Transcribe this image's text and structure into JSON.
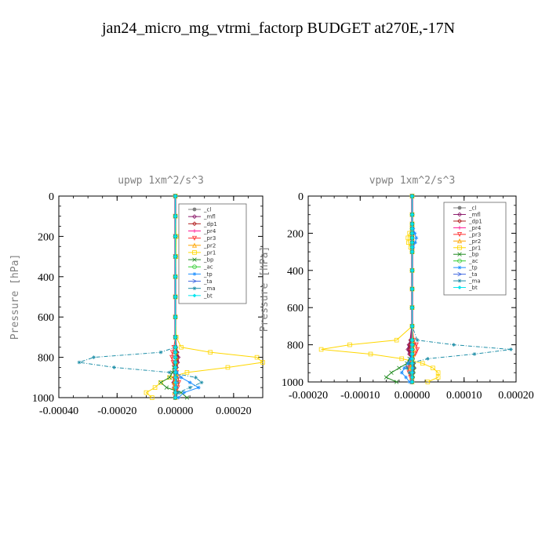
{
  "title": "jan24_micro_mg_vtrmi_factorp  BUDGET at270E,-17N",
  "chart_data": [
    {
      "type": "line",
      "title": "upwp   1xm^2/s^3",
      "ylabel": "Pressure [hPa]",
      "xlim": [
        -0.0004,
        0.0003
      ],
      "ylim": [
        1000,
        0
      ],
      "xticks": [
        -0.0004,
        -0.0002,
        0.0,
        0.0002
      ],
      "xticklabels": [
        "-0.00040",
        "-0.00020",
        "0.00000",
        "0.00020"
      ],
      "yticks": [
        0,
        200,
        400,
        600,
        800,
        1000
      ],
      "yticklabels": [
        "0",
        "200",
        "400",
        "600",
        "800",
        "1000"
      ],
      "legend_position": "upper-right",
      "pressure": [
        0,
        100,
        200,
        300,
        400,
        500,
        600,
        700,
        750,
        775,
        800,
        825,
        850,
        875,
        900,
        925,
        950,
        975,
        1000
      ],
      "series": [
        {
          "name": "_cl",
          "color": "#808080",
          "marker": "circle",
          "values": [
            0,
            0,
            0,
            0,
            0,
            0,
            0,
            0,
            0,
            2e-06,
            3e-06,
            2e-06,
            1e-06,
            0,
            -2e-06,
            -3e-06,
            -2e-06,
            -1e-06,
            0
          ]
        },
        {
          "name": "_mfl",
          "color": "#8b1a6b",
          "marker": "diamond",
          "values": [
            0,
            0,
            0,
            0,
            0,
            0,
            0,
            0,
            2e-06,
            6e-06,
            1e-05,
            8e-06,
            4e-06,
            0,
            -4e-06,
            -6e-06,
            -4e-06,
            -2e-06,
            0
          ]
        },
        {
          "name": "_dp1",
          "color": "#b22222",
          "marker": "diamond",
          "values": [
            0,
            0,
            0,
            0,
            0,
            0,
            0,
            0,
            1e-06,
            3e-06,
            5e-06,
            4e-06,
            2e-06,
            0,
            -2e-06,
            -3e-06,
            -2e-06,
            -1e-06,
            0
          ]
        },
        {
          "name": "_pr4",
          "color": "#ff1493",
          "marker": "plus",
          "values": [
            0,
            0,
            0,
            0,
            0,
            0,
            0,
            0,
            1e-06,
            2e-06,
            4e-06,
            3e-06,
            1e-06,
            0,
            -1e-06,
            -2e-06,
            -2e-06,
            -1e-06,
            0
          ]
        },
        {
          "name": "_pr3",
          "color": "#ff3030",
          "marker": "triangle-down",
          "values": [
            0,
            0,
            0,
            0,
            0,
            0,
            0,
            0,
            -5e-06,
            -1e-05,
            -1.2e-05,
            -8e-06,
            -4e-06,
            4e-06,
            1e-05,
            1.2e-05,
            8e-06,
            4e-06,
            0
          ]
        },
        {
          "name": "_pr2",
          "color": "#ffa500",
          "marker": "triangle",
          "values": [
            0,
            0,
            0,
            0,
            0,
            0,
            0,
            0,
            1e-06,
            3e-06,
            4e-06,
            3e-06,
            2e-06,
            0,
            -2e-06,
            -4e-06,
            -5e-06,
            -3e-06,
            0
          ]
        },
        {
          "name": "_pr1",
          "color": "#ffd700",
          "marker": "square",
          "values": [
            0,
            0,
            3e-06,
            2e-06,
            0,
            0,
            0,
            3e-06,
            2e-05,
            0.00012,
            0.00028,
            0.0003,
            0.00018,
            4e-05,
            -2e-05,
            -5e-05,
            -7e-05,
            -0.0001,
            -8e-05
          ]
        },
        {
          "name": "_bp",
          "color": "#228b22",
          "marker": "x",
          "values": [
            0,
            0,
            0,
            0,
            0,
            0,
            0,
            0,
            0,
            0,
            0,
            0,
            -5e-06,
            -1e-05,
            -2e-05,
            -5e-05,
            -3e-05,
            2e-05,
            4e-05
          ]
        },
        {
          "name": "_ac",
          "color": "#32cd32",
          "marker": "circle-open",
          "values": [
            0,
            0,
            0,
            0,
            0,
            0,
            0,
            0,
            0,
            0,
            0,
            0,
            0,
            2e-06,
            3e-06,
            4e-06,
            2e-06,
            1e-06,
            0
          ]
        },
        {
          "name": "_tp",
          "color": "#1e90ff",
          "marker": "asterisk",
          "values": [
            0,
            0,
            0,
            0,
            0,
            0,
            0,
            0,
            0,
            0,
            0,
            0,
            0,
            5e-06,
            2e-05,
            5e-05,
            8e-05,
            3e-05,
            1e-05
          ]
        },
        {
          "name": "_ta",
          "color": "#4169e1",
          "marker": "arrow",
          "values": [
            0,
            0,
            0,
            0,
            0,
            0,
            0,
            0,
            0,
            0,
            0,
            0,
            0,
            0,
            2e-06,
            4e-06,
            3e-06,
            1e-06,
            0
          ]
        },
        {
          "name": "_ma",
          "color": "#1f8fa8",
          "marker": "star",
          "values": [
            0,
            0,
            0,
            0,
            0,
            0,
            0,
            0,
            0,
            -5e-05,
            -0.00028,
            -0.00033,
            -0.00021,
            -2e-05,
            7e-05,
            9e-05,
            5e-05,
            1e-05,
            0
          ]
        },
        {
          "name": "_bt",
          "color": "#00e5ee",
          "marker": "diamond-filled",
          "values": [
            0,
            0,
            0,
            0,
            0,
            0,
            0,
            0,
            0,
            0,
            0,
            0,
            0,
            0,
            0,
            0,
            0,
            0,
            0
          ]
        }
      ]
    },
    {
      "type": "line",
      "title": "vpwp   1xm^2/s^3",
      "ylabel": "Pressure [hPa]",
      "xlim": [
        -0.0002,
        0.0002
      ],
      "ylim": [
        1000,
        0
      ],
      "xticks": [
        -0.0002,
        -0.0001,
        0.0,
        0.0001,
        0.0002
      ],
      "xticklabels": [
        "-0.00020",
        "-0.00010",
        "0.00000",
        "0.00010",
        "0.00020"
      ],
      "yticks": [
        0,
        200,
        400,
        600,
        800,
        1000
      ],
      "yticklabels": [
        "0",
        "200",
        "400",
        "600",
        "800",
        "1000"
      ],
      "legend_position": "upper-right",
      "pressure": [
        0,
        100,
        150,
        175,
        200,
        225,
        250,
        275,
        300,
        400,
        500,
        600,
        700,
        775,
        800,
        825,
        850,
        875,
        900,
        925,
        950,
        975,
        1000
      ],
      "series": [
        {
          "name": "_cl",
          "color": "#808080",
          "marker": "circle",
          "values": [
            0,
            0,
            0,
            0,
            0,
            0,
            0,
            0,
            0,
            0,
            0,
            0,
            0,
            1e-06,
            2e-06,
            1e-06,
            0,
            -1e-06,
            -2e-06,
            -1e-06,
            0,
            0,
            0
          ]
        },
        {
          "name": "_mfl",
          "color": "#8b1a6b",
          "marker": "diamond",
          "values": [
            0,
            0,
            0,
            0,
            0,
            0,
            0,
            0,
            0,
            0,
            0,
            0,
            0,
            -3e-06,
            -6e-06,
            -8e-06,
            -5e-06,
            0,
            3e-06,
            4e-06,
            2e-06,
            1e-06,
            0
          ]
        },
        {
          "name": "_dp1",
          "color": "#b22222",
          "marker": "diamond",
          "values": [
            0,
            0,
            0,
            0,
            0,
            0,
            0,
            0,
            0,
            0,
            0,
            0,
            0,
            -2e-06,
            -4e-06,
            -5e-06,
            -3e-06,
            0,
            2e-06,
            3e-06,
            2e-06,
            1e-06,
            0
          ]
        },
        {
          "name": "_pr4",
          "color": "#ff1493",
          "marker": "plus",
          "values": [
            0,
            0,
            0,
            0,
            0,
            0,
            0,
            0,
            0,
            0,
            0,
            0,
            0,
            -1e-06,
            -2e-06,
            -3e-06,
            -2e-06,
            0,
            1e-06,
            2e-06,
            1e-06,
            0,
            0
          ]
        },
        {
          "name": "_pr3",
          "color": "#ff3030",
          "marker": "triangle-down",
          "values": [
            0,
            0,
            0,
            0,
            0,
            0,
            0,
            0,
            0,
            0,
            0,
            0,
            0,
            3e-06,
            8e-06,
            1e-05,
            6e-06,
            0,
            -5e-06,
            -8e-06,
            -6e-06,
            -3e-06,
            0
          ]
        },
        {
          "name": "_pr2",
          "color": "#ffa500",
          "marker": "triangle",
          "values": [
            0,
            0,
            0,
            0,
            0,
            0,
            0,
            0,
            0,
            0,
            0,
            0,
            0,
            1e-06,
            2e-06,
            3e-06,
            2e-06,
            0,
            -2e-06,
            -3e-06,
            -2e-06,
            -1e-06,
            0
          ]
        },
        {
          "name": "_pr1",
          "color": "#ffd700",
          "marker": "square",
          "values": [
            0,
            0,
            0,
            0,
            -5e-06,
            -8e-06,
            -7e-06,
            -3e-06,
            0,
            0,
            0,
            0,
            0,
            -3e-05,
            -0.00012,
            -0.000175,
            -8e-05,
            -2e-05,
            2e-05,
            4e-05,
            5e-05,
            5e-05,
            3e-05
          ]
        },
        {
          "name": "_bp",
          "color": "#228b22",
          "marker": "x",
          "values": [
            0,
            0,
            0,
            0,
            0,
            0,
            0,
            0,
            0,
            0,
            0,
            0,
            0,
            0,
            0,
            0,
            0,
            -5e-06,
            -1e-05,
            -2.5e-05,
            -4e-05,
            -5e-05,
            -3e-05
          ]
        },
        {
          "name": "_ac",
          "color": "#32cd32",
          "marker": "circle-open",
          "values": [
            0,
            0,
            0,
            0,
            0,
            0,
            0,
            0,
            0,
            0,
            0,
            0,
            0,
            0,
            0,
            0,
            0,
            1e-06,
            2e-06,
            3e-06,
            2e-06,
            1e-06,
            0
          ]
        },
        {
          "name": "_tp",
          "color": "#1e90ff",
          "marker": "asterisk",
          "values": [
            0,
            0,
            0,
            2e-06,
            5e-06,
            8e-06,
            6e-06,
            2e-06,
            0,
            0,
            0,
            0,
            0,
            0,
            0,
            0,
            0,
            -3e-06,
            -8e-06,
            -1.5e-05,
            -2e-05,
            -1.2e-05,
            -5e-06
          ]
        },
        {
          "name": "_ta",
          "color": "#4169e1",
          "marker": "arrow",
          "values": [
            0,
            0,
            0,
            0,
            0,
            0,
            0,
            0,
            0,
            0,
            0,
            0,
            0,
            0,
            0,
            0,
            0,
            0,
            1e-06,
            2e-06,
            1e-06,
            0,
            0
          ]
        },
        {
          "name": "_ma",
          "color": "#1f8fa8",
          "marker": "star",
          "values": [
            0,
            0,
            0,
            0,
            0,
            0,
            0,
            0,
            0,
            0,
            0,
            0,
            0,
            1e-05,
            8e-05,
            0.00019,
            0.00012,
            3e-05,
            -5e-06,
            -1e-05,
            -5e-06,
            0,
            0
          ]
        },
        {
          "name": "_bt",
          "color": "#00e5ee",
          "marker": "diamond-filled",
          "values": [
            0,
            0,
            0,
            0,
            0,
            0,
            0,
            0,
            0,
            0,
            0,
            0,
            0,
            0,
            0,
            0,
            0,
            0,
            0,
            0,
            0,
            0,
            0
          ]
        }
      ]
    }
  ]
}
